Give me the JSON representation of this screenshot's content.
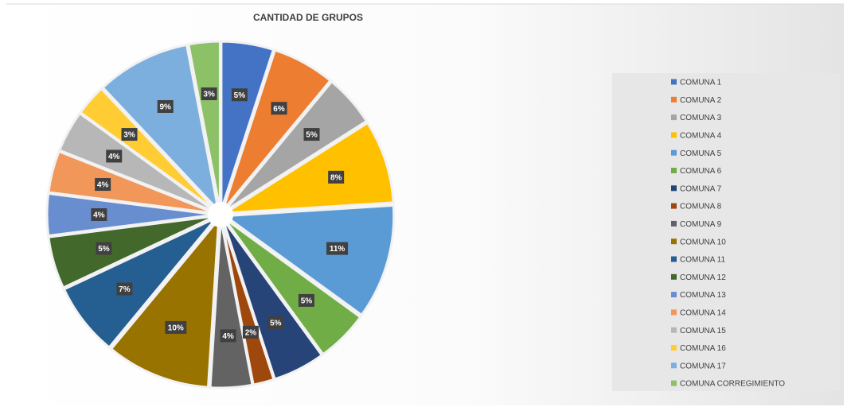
{
  "chart_data": {
    "type": "pie",
    "title": "CANTIDAD DE GRUPOS",
    "categories": [
      "COMUNA 1",
      "COMUNA 2",
      "COMUNA 3",
      "COMUNA 4",
      "COMUNA 5",
      "COMUNA 6",
      "COMUNA 7",
      "COMUNA 8",
      "COMUNA 9",
      "COMUNA 10",
      "COMUNA 11",
      "COMUNA 12",
      "COMUNA 13",
      "COMUNA 14",
      "COMUNA 15",
      "COMUNA 16",
      "COMUNA 17",
      "COMUNA CORREGIMIENTO"
    ],
    "values": [
      5,
      6,
      5,
      8,
      11,
      5,
      5,
      2,
      4,
      10,
      7,
      5,
      4,
      4,
      4,
      3,
      9,
      3
    ],
    "value_labels": [
      "5%",
      "6%",
      "5%",
      "8%",
      "11%",
      "5%",
      "5%",
      "2%",
      "4%",
      "10%",
      "7%",
      "5%",
      "4%",
      "4%",
      "4%",
      "3%",
      "9%",
      "3%"
    ],
    "colors": [
      "#4472c4",
      "#ed7d31",
      "#a5a5a5",
      "#ffc000",
      "#5b9bd5",
      "#70ad47",
      "#264478",
      "#9e480e",
      "#636363",
      "#997300",
      "#255e91",
      "#43682b",
      "#698ed0",
      "#f1975a",
      "#b7b7b7",
      "#ffcd33",
      "#7cafdd",
      "#8cc168"
    ],
    "legend": "right"
  }
}
